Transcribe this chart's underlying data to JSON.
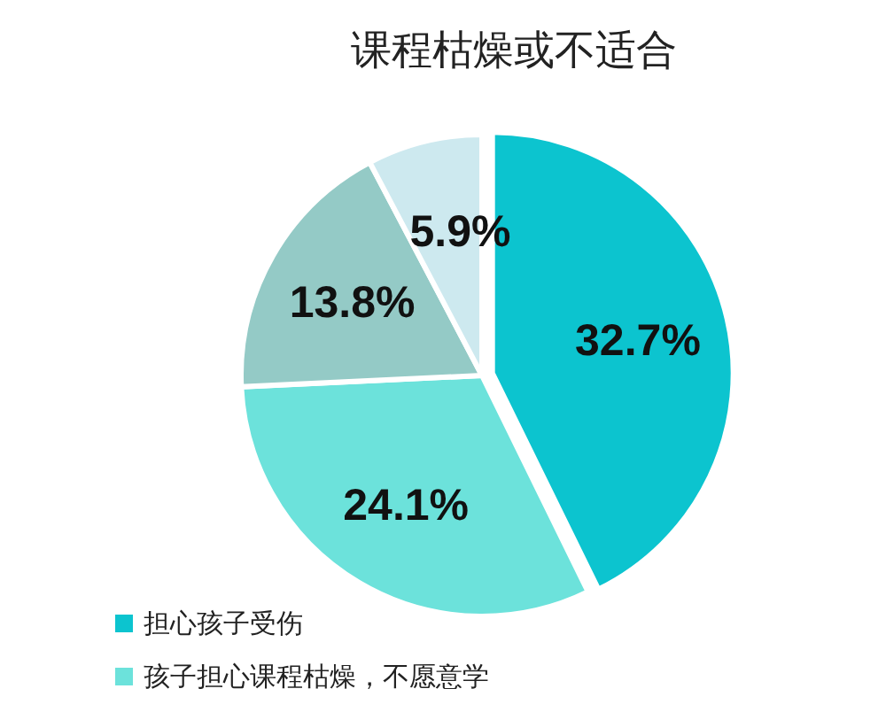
{
  "chart_data": {
    "type": "pie",
    "title": "课程枯燥或不适合",
    "categories": [
      "担心孩子受伤",
      "孩子担心课程枯燥，不愿意学",
      null,
      null
    ],
    "values": [
      32.7,
      24.1,
      13.8,
      5.9
    ],
    "colors": [
      "#0cc4cf",
      "#6ce2db",
      "#94cac6",
      "#cde9ef"
    ],
    "value_labels": [
      "32.7%",
      "24.1%",
      "13.8%",
      "5.9%"
    ],
    "legend": "bottom left"
  }
}
